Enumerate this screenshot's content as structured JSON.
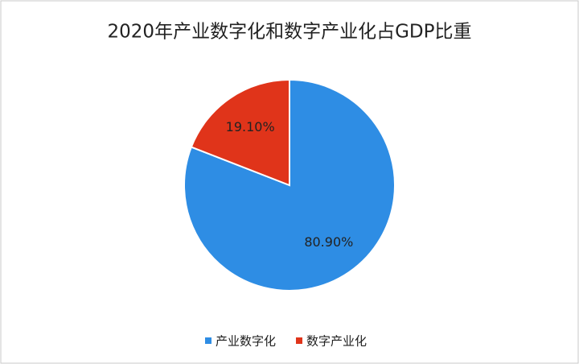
{
  "chart_data": {
    "type": "pie",
    "title": "2020年产业数字化和数字产业化占GDP比重",
    "categories": [
      "产业数字化",
      "数字产业化"
    ],
    "values": [
      80.9,
      19.1
    ],
    "value_labels": [
      "80.90%",
      "19.10%"
    ],
    "colors": [
      "#2e8de4",
      "#e0341a"
    ],
    "legend": "bottom"
  }
}
